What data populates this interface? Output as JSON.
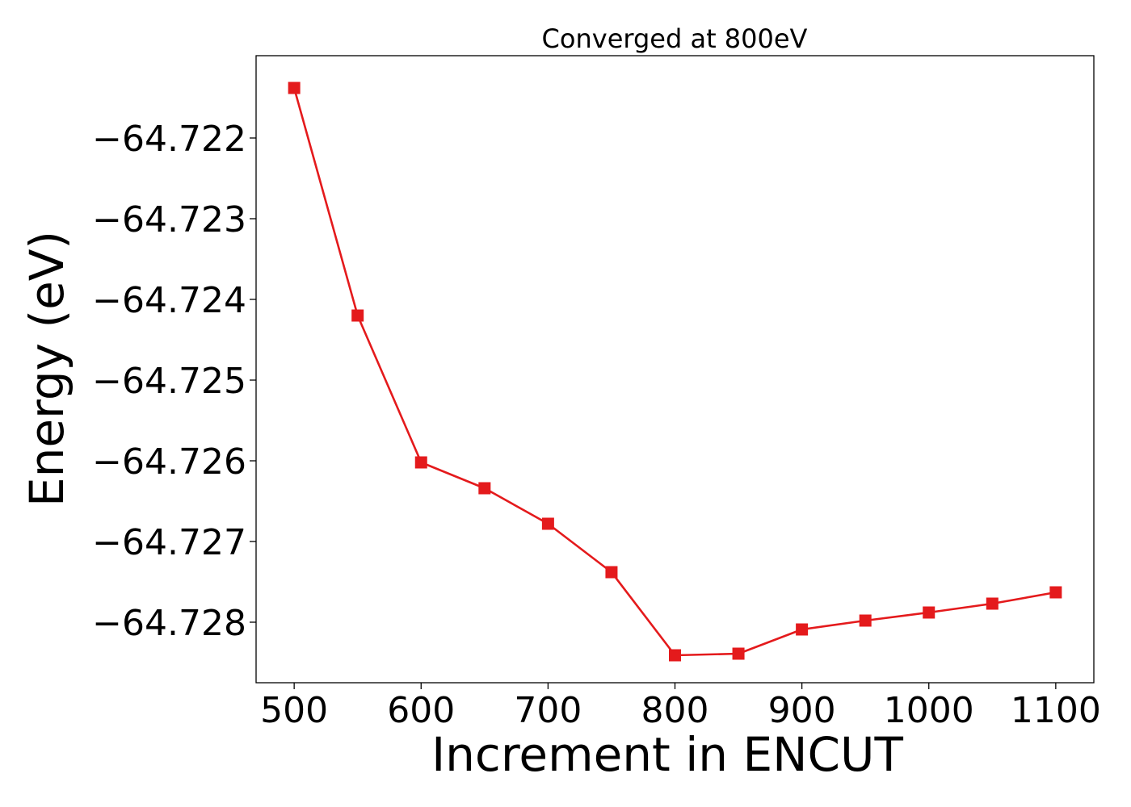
{
  "chart_data": {
    "type": "line",
    "title": "Converged at 800eV",
    "xlabel": "Increment in ENCUT",
    "ylabel": "Energy (eV)",
    "x_ticks": [
      500,
      600,
      700,
      800,
      900,
      1000,
      1100
    ],
    "x_tick_labels": [
      "500",
      "600",
      "700",
      "800",
      "900",
      "1000",
      "1100"
    ],
    "y_ticks": [
      -64.722,
      -64.723,
      -64.724,
      -64.725,
      -64.726,
      -64.727,
      -64.728
    ],
    "y_tick_labels": [
      "−64.722",
      "−64.723",
      "−64.724",
      "−64.725",
      "−64.726",
      "−64.727",
      "−64.728"
    ],
    "xlim": [
      470,
      1130
    ],
    "ylim": [
      -64.72875,
      -64.72098
    ],
    "grid": false,
    "series": [
      {
        "color": "#e41a1c",
        "marker": "square",
        "x": [
          500,
          550,
          600,
          650,
          700,
          750,
          800,
          850,
          900,
          950,
          1000,
          1050,
          1100
        ],
        "y": [
          -64.72138,
          -64.7242,
          -64.72602,
          -64.72634,
          -64.72678,
          -64.72738,
          -64.72841,
          -64.72839,
          -64.72809,
          -64.72798,
          -64.72788,
          -64.72777,
          -64.72763
        ]
      }
    ]
  }
}
